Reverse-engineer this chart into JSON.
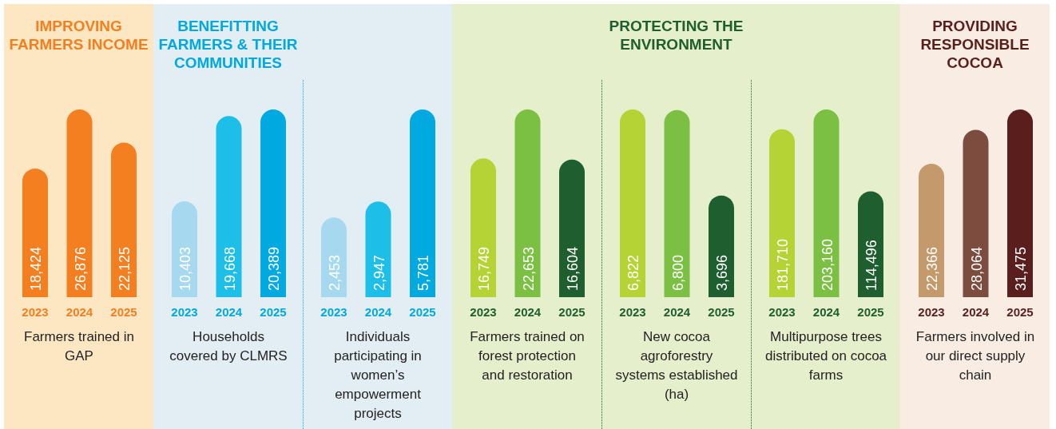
{
  "chart_data": [
    {
      "type": "bar",
      "title": "IMPROVING FARMERS INCOME",
      "categories": [
        "2023",
        "2024",
        "2025"
      ],
      "values": [
        18424,
        26876,
        22125
      ],
      "value_labels": [
        "18,424",
        "26,876",
        "22,125"
      ],
      "colors": [
        "#f47f20",
        "#f47f20",
        "#f47f20"
      ],
      "xlabel": "Farmers trained in GAP"
    },
    {
      "type": "bar",
      "title": "BENEFITTING FARMERS & THEIR COMMUNITIES",
      "categories": [
        "2023",
        "2024",
        "2025"
      ],
      "values": [
        10403,
        19668,
        20389
      ],
      "value_labels": [
        "10,403",
        "19,668",
        "20,389"
      ],
      "colors": [
        "#a6d9ef",
        "#1dbfe9",
        "#00a9e0"
      ],
      "xlabel": "Households covered by CLMRS"
    },
    {
      "type": "bar",
      "categories": [
        "2023",
        "2024",
        "2025"
      ],
      "values": [
        2453,
        2947,
        5781
      ],
      "value_labels": [
        "2,453",
        "2,947",
        "5,781"
      ],
      "colors": [
        "#a6d9ef",
        "#1dbfe9",
        "#00a9e0"
      ],
      "xlabel": "Individuals participating in women’s empowerment projects"
    },
    {
      "type": "bar",
      "categories": [
        "2023",
        "2024",
        "2025"
      ],
      "values": [
        16749,
        22653,
        16604
      ],
      "value_labels": [
        "16,749",
        "22,653",
        "16,604"
      ],
      "colors": [
        "#b5d334",
        "#7bc043",
        "#1f5e2e"
      ],
      "xlabel": "Farmers trained on forest protection and restoration"
    },
    {
      "type": "bar",
      "title": "PROTECTING THE ENVIRONMENT",
      "categories": [
        "2023",
        "2024",
        "2025"
      ],
      "values": [
        6822,
        6800,
        3696
      ],
      "value_labels": [
        "6,822",
        "6,800",
        "3,696"
      ],
      "colors": [
        "#b5d334",
        "#7bc043",
        "#1f5e2e"
      ],
      "xlabel": "New cocoa agroforestry systems established (ha)"
    },
    {
      "type": "bar",
      "categories": [
        "2023",
        "2024",
        "2025"
      ],
      "values": [
        181710,
        203160,
        114496
      ],
      "value_labels": [
        "181,710",
        "203,160",
        "114,496"
      ],
      "colors": [
        "#b5d334",
        "#7bc043",
        "#1f5e2e"
      ],
      "xlabel": "Multipurpose trees distributed on cocoa farms"
    },
    {
      "type": "bar",
      "title": "PROVIDING RESPONSIBLE COCOA",
      "categories": [
        "2023",
        "2024",
        "2025"
      ],
      "values": [
        22366,
        28064,
        31475
      ],
      "value_labels": [
        "22,366",
        "28,064",
        "31,475"
      ],
      "colors": [
        "#c49a6c",
        "#7c4c3e",
        "#5a1f1d"
      ],
      "xlabel": "Farmers involved in our direct supply chain"
    }
  ]
}
